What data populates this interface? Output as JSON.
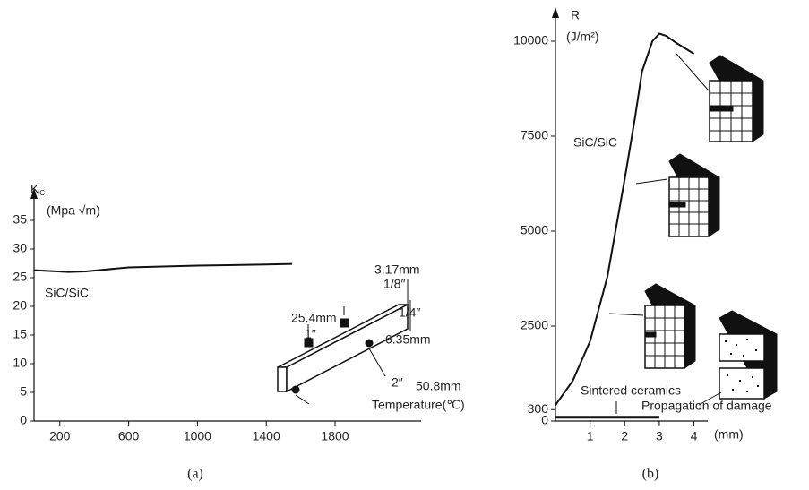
{
  "chart_data": [
    {
      "type": "line",
      "caption": "(a)",
      "ylabel": "K",
      "ylabel_sub": "IC",
      "yunit": "(Mpa √m)",
      "xlabel": "Temperature(℃)",
      "xlim": [
        50,
        2300
      ],
      "xticks": [
        200,
        600,
        1000,
        1400,
        1800
      ],
      "ylim": [
        0,
        35
      ],
      "yticks": [
        0,
        5,
        10,
        15,
        20,
        25,
        30,
        35
      ],
      "series": [
        {
          "name": "SiC/SiC",
          "color": "#111111",
          "x": [
            50,
            250,
            350,
            600,
            1000,
            1400,
            1550
          ],
          "values": [
            26.3,
            26.0,
            26.1,
            26.8,
            27.1,
            27.3,
            27.4
          ]
        }
      ],
      "annotations": [
        "3.17mm",
        "1/8″",
        "25.4mm",
        "1″",
        "1/4″",
        "6.35mm",
        "2″",
        "50.8mm"
      ]
    },
    {
      "type": "line",
      "caption": "(b)",
      "ylabel": "R",
      "yunit": "(J/m²)",
      "xlabel": "(mm)",
      "xlim": [
        0,
        4.4
      ],
      "xticks": [
        1,
        2,
        3,
        4
      ],
      "ylim": [
        0,
        10000
      ],
      "yticks": [
        0,
        300,
        2500,
        5000,
        7500,
        10000
      ],
      "series": [
        {
          "name": "SiC/SiC",
          "color": "#111111",
          "x": [
            0,
            0.5,
            1.0,
            1.5,
            2.0,
            2.3,
            2.5,
            2.8,
            3.0,
            3.2,
            3.5,
            4.0
          ],
          "values": [
            420,
            1060,
            2100,
            3800,
            6370,
            8000,
            9200,
            10000,
            10200,
            10140,
            9950,
            9670
          ]
        },
        {
          "name": "Sintered ceramics",
          "color": "#111111",
          "x": [
            0,
            3
          ],
          "values": [
            100,
            100
          ]
        }
      ],
      "annotations": [
        "Propagation of damage"
      ]
    }
  ]
}
